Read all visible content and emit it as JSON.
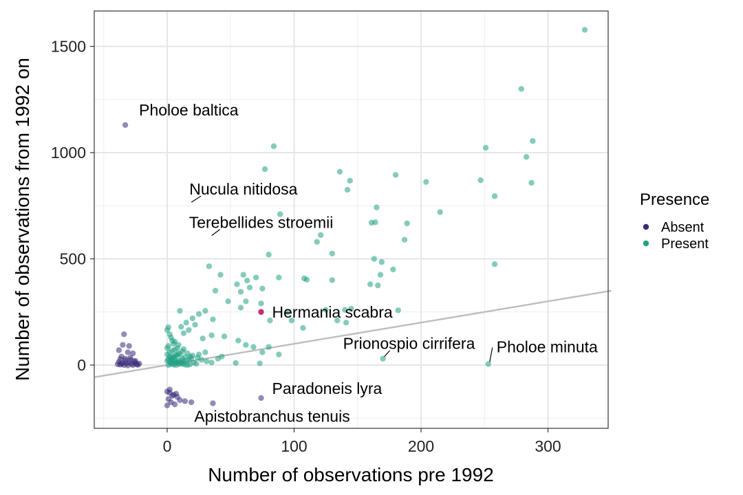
{
  "chart_data": {
    "type": "scatter",
    "xlabel": "Number of observations pre 1992",
    "ylabel": "Number of observations from 1992 on",
    "xlim": [
      -57,
      350
    ],
    "ylim": [
      -295,
      1630
    ],
    "xticks": [
      0,
      100,
      200,
      300
    ],
    "yticks": [
      0,
      500,
      1000,
      1500
    ],
    "grid": true,
    "legend": {
      "title": "Presence",
      "placement": "right"
    },
    "colors": {
      "Absent": "#3b2b7a",
      "Present": "#21a084",
      "highlight": "#c2246e",
      "trend_line": "#bdbdbd"
    },
    "trend_line": {
      "intercept": 0,
      "slope": 1
    },
    "series": [
      {
        "name": "Absent",
        "points": [
          [
            -33,
            1130
          ],
          [
            -34,
            145
          ],
          [
            -35,
            95
          ],
          [
            -30,
            90
          ],
          [
            -38,
            70
          ],
          [
            -31,
            60
          ],
          [
            -27,
            55
          ],
          [
            -36,
            40
          ],
          [
            -33,
            30
          ],
          [
            -29,
            25
          ],
          [
            -25,
            20
          ],
          [
            -38,
            15
          ],
          [
            -35,
            10
          ],
          [
            -32,
            8
          ],
          [
            -28,
            5
          ],
          [
            -24,
            3
          ],
          [
            -37,
            2
          ],
          [
            -34,
            0
          ],
          [
            -31,
            -2
          ],
          [
            -27,
            0
          ],
          [
            -23,
            1
          ],
          [
            -39,
            4
          ],
          [
            -36,
            6
          ],
          [
            -30,
            12
          ],
          [
            -26,
            18
          ],
          [
            -22,
            7
          ],
          [
            -33,
            22
          ],
          [
            -29,
            35
          ],
          [
            -37,
            28
          ],
          [
            -25,
            9
          ],
          [
            0,
            -125
          ],
          [
            2,
            -130
          ],
          [
            5,
            -140
          ],
          [
            8,
            -150
          ],
          [
            1,
            -160
          ],
          [
            3,
            -175
          ],
          [
            6,
            -185
          ],
          [
            0,
            -190
          ],
          [
            4,
            -145
          ],
          [
            7,
            -135
          ],
          [
            10,
            -165
          ],
          [
            14,
            -170
          ],
          [
            19,
            -175
          ],
          [
            36,
            -180
          ],
          [
            74,
            -155
          ],
          [
            2,
            -115
          ]
        ]
      },
      {
        "name": "Present",
        "points": [
          [
            329,
            1578
          ],
          [
            279,
            1300
          ],
          [
            251,
            1023
          ],
          [
            288,
            1055
          ],
          [
            283,
            980
          ],
          [
            287,
            858
          ],
          [
            247,
            870
          ],
          [
            258,
            795
          ],
          [
            215,
            720
          ],
          [
            204,
            862
          ],
          [
            180,
            895
          ],
          [
            189,
            667
          ],
          [
            187,
            590
          ],
          [
            178,
            450
          ],
          [
            258,
            475
          ],
          [
            165,
            742
          ],
          [
            161,
            670
          ],
          [
            164,
            672
          ],
          [
            169,
            485
          ],
          [
            166,
            375
          ],
          [
            168,
            425
          ],
          [
            160,
            380
          ],
          [
            163,
            500
          ],
          [
            77,
            922
          ],
          [
            84,
            1030
          ],
          [
            136,
            910
          ],
          [
            142,
            825
          ],
          [
            144,
            868
          ],
          [
            89,
            710
          ],
          [
            121,
            612
          ],
          [
            118,
            580
          ],
          [
            130,
            525
          ],
          [
            60,
            425
          ],
          [
            70,
            412
          ],
          [
            80,
            520
          ],
          [
            88,
            412
          ],
          [
            108,
            408
          ],
          [
            110,
            402
          ],
          [
            130,
            400
          ],
          [
            33,
            465
          ],
          [
            42,
            425
          ],
          [
            55,
            380
          ],
          [
            65,
            365
          ],
          [
            38,
            350
          ],
          [
            58,
            345
          ],
          [
            75,
            360
          ],
          [
            63,
            398
          ],
          [
            48,
            300
          ],
          [
            62,
            300
          ],
          [
            74,
            290
          ],
          [
            58,
            270
          ],
          [
            107,
            175
          ],
          [
            134,
            210
          ],
          [
            141,
            200
          ],
          [
            98,
            210
          ],
          [
            81,
            210
          ],
          [
            95,
            250
          ],
          [
            125,
            260
          ],
          [
            140,
            260
          ],
          [
            145,
            265
          ],
          [
            182,
            258
          ],
          [
            170,
            30
          ],
          [
            253,
            5
          ],
          [
            10,
            255
          ],
          [
            17,
            165
          ],
          [
            20,
            220
          ],
          [
            25,
            240
          ],
          [
            30,
            255
          ],
          [
            15,
            200
          ],
          [
            22,
            190
          ],
          [
            36,
            215
          ],
          [
            11,
            180
          ],
          [
            13,
            150
          ],
          [
            28,
            125
          ],
          [
            35,
            140
          ],
          [
            45,
            135
          ],
          [
            56,
            115
          ],
          [
            62,
            95
          ],
          [
            68,
            85
          ],
          [
            80,
            85
          ],
          [
            88,
            50
          ],
          [
            75,
            60
          ],
          [
            54,
            10
          ],
          [
            73,
            8
          ],
          [
            40,
            30
          ],
          [
            43,
            40
          ],
          [
            30,
            60
          ],
          [
            25,
            50
          ],
          [
            18,
            40
          ],
          [
            12,
            65
          ],
          [
            8,
            80
          ],
          [
            5,
            100
          ],
          [
            3,
            130
          ],
          [
            0,
            165
          ],
          [
            1,
            178
          ],
          [
            2,
            145
          ],
          [
            4,
            115
          ],
          [
            6,
            110
          ],
          [
            9,
            95
          ],
          [
            13,
            75
          ],
          [
            16,
            55
          ],
          [
            20,
            45
          ],
          [
            24,
            35
          ],
          [
            27,
            25
          ],
          [
            31,
            18
          ],
          [
            35,
            12
          ],
          [
            0,
            50
          ],
          [
            2,
            40
          ],
          [
            4,
            30
          ],
          [
            6,
            20
          ],
          [
            8,
            15
          ],
          [
            10,
            10
          ],
          [
            12,
            5
          ],
          [
            14,
            2
          ],
          [
            16,
            0
          ],
          [
            18,
            3
          ],
          [
            1,
            0
          ],
          [
            3,
            5
          ],
          [
            5,
            8
          ],
          [
            7,
            12
          ],
          [
            9,
            18
          ],
          [
            11,
            22
          ],
          [
            1,
            28
          ],
          [
            3,
            35
          ],
          [
            5,
            42
          ],
          [
            7,
            48
          ],
          [
            9,
            55
          ],
          [
            2,
            60
          ],
          [
            4,
            68
          ],
          [
            6,
            72
          ],
          [
            0,
            80
          ],
          [
            1,
            90
          ],
          [
            3,
            12
          ],
          [
            5,
            2
          ],
          [
            7,
            0
          ],
          [
            9,
            4
          ],
          [
            11,
            9
          ],
          [
            13,
            14
          ],
          [
            15,
            20
          ],
          [
            17,
            26
          ],
          [
            19,
            32
          ],
          [
            0,
            20
          ],
          [
            2,
            16
          ],
          [
            4,
            24
          ],
          [
            6,
            36
          ],
          [
            8,
            44
          ],
          [
            10,
            52
          ],
          [
            12,
            30
          ],
          [
            14,
            38
          ],
          [
            21,
            12
          ],
          [
            23,
            6
          ]
        ]
      },
      {
        "name": "Hermania scabra",
        "points": [
          [
            74,
            250
          ]
        ]
      }
    ],
    "annotations": [
      {
        "text": "Pholoe baltica",
        "x": -33,
        "y": 1130,
        "leader": false
      },
      {
        "text": "Nucula nitidosa",
        "x": 18,
        "y": 757,
        "leader": true
      },
      {
        "text": "Terebellides stroemii",
        "x": 34,
        "y": 600,
        "leader": true
      },
      {
        "text": "Hermania scabra",
        "x": 74,
        "y": 250,
        "leader": false
      },
      {
        "text": "Prionospio cirrifera",
        "x": 170,
        "y": 30,
        "leader": true
      },
      {
        "text": "Pholoe minuta",
        "x": 253,
        "y": 5,
        "leader": true
      },
      {
        "text": "Paradoneis lyra",
        "x": 74,
        "y": -155,
        "leader": false
      },
      {
        "text": "Apistobranchus tenuis",
        "x": 36,
        "y": -180,
        "leader": false
      }
    ]
  }
}
